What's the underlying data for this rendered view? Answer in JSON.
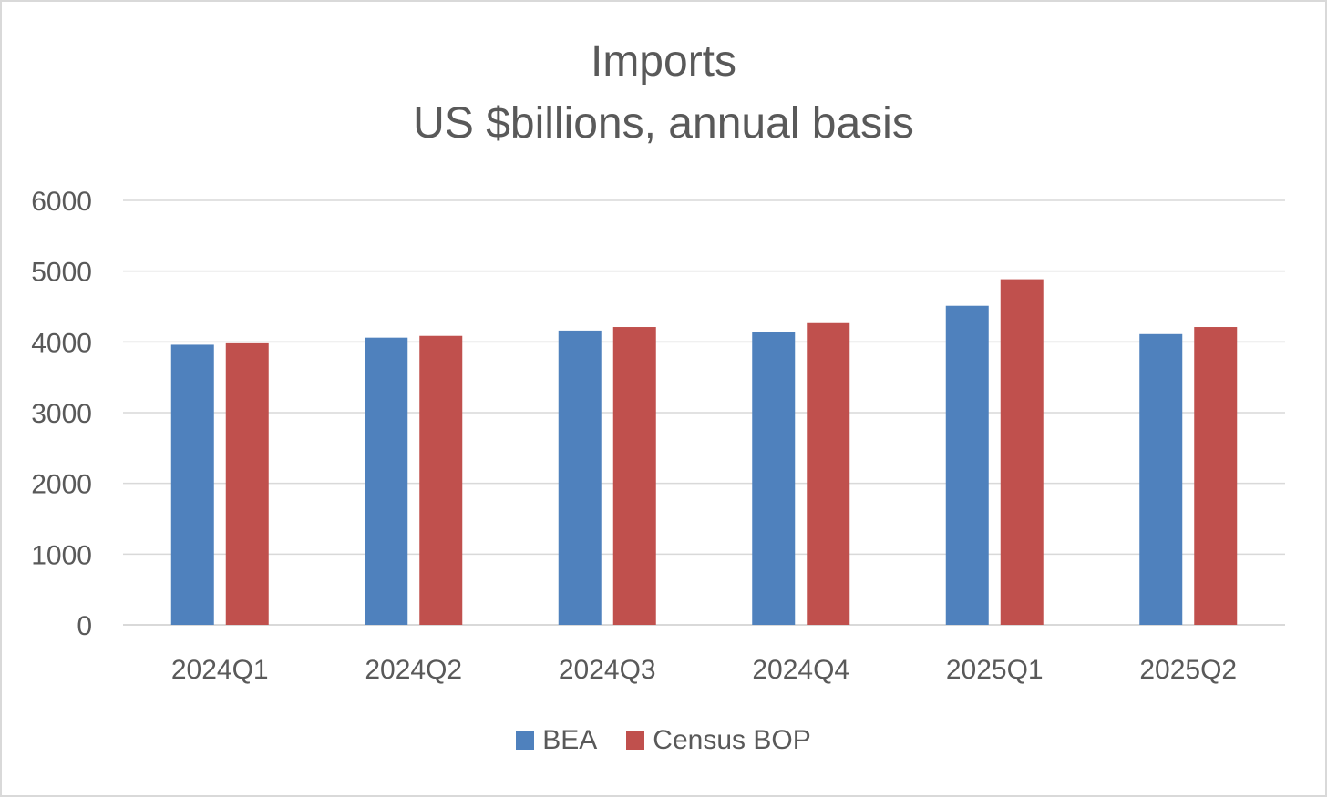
{
  "chart_data": {
    "type": "bar",
    "title": "Imports",
    "subtitle": "US $billions, annual basis",
    "categories": [
      "2024Q1",
      "2024Q2",
      "2024Q3",
      "2024Q4",
      "2025Q1",
      "2025Q2"
    ],
    "series": [
      {
        "name": "BEA",
        "color": "#4f81bd",
        "values": [
          3960,
          4060,
          4160,
          4140,
          4510,
          4110
        ]
      },
      {
        "name": "Census BOP",
        "color": "#c0504d",
        "values": [
          3980,
          4085,
          4210,
          4265,
          4885,
          4210
        ]
      }
    ],
    "ylim": [
      0,
      6000
    ],
    "yticks": [
      "0",
      "1000",
      "2000",
      "3000",
      "4000",
      "5000",
      "6000"
    ],
    "grid": true,
    "legend_position": "bottom"
  }
}
